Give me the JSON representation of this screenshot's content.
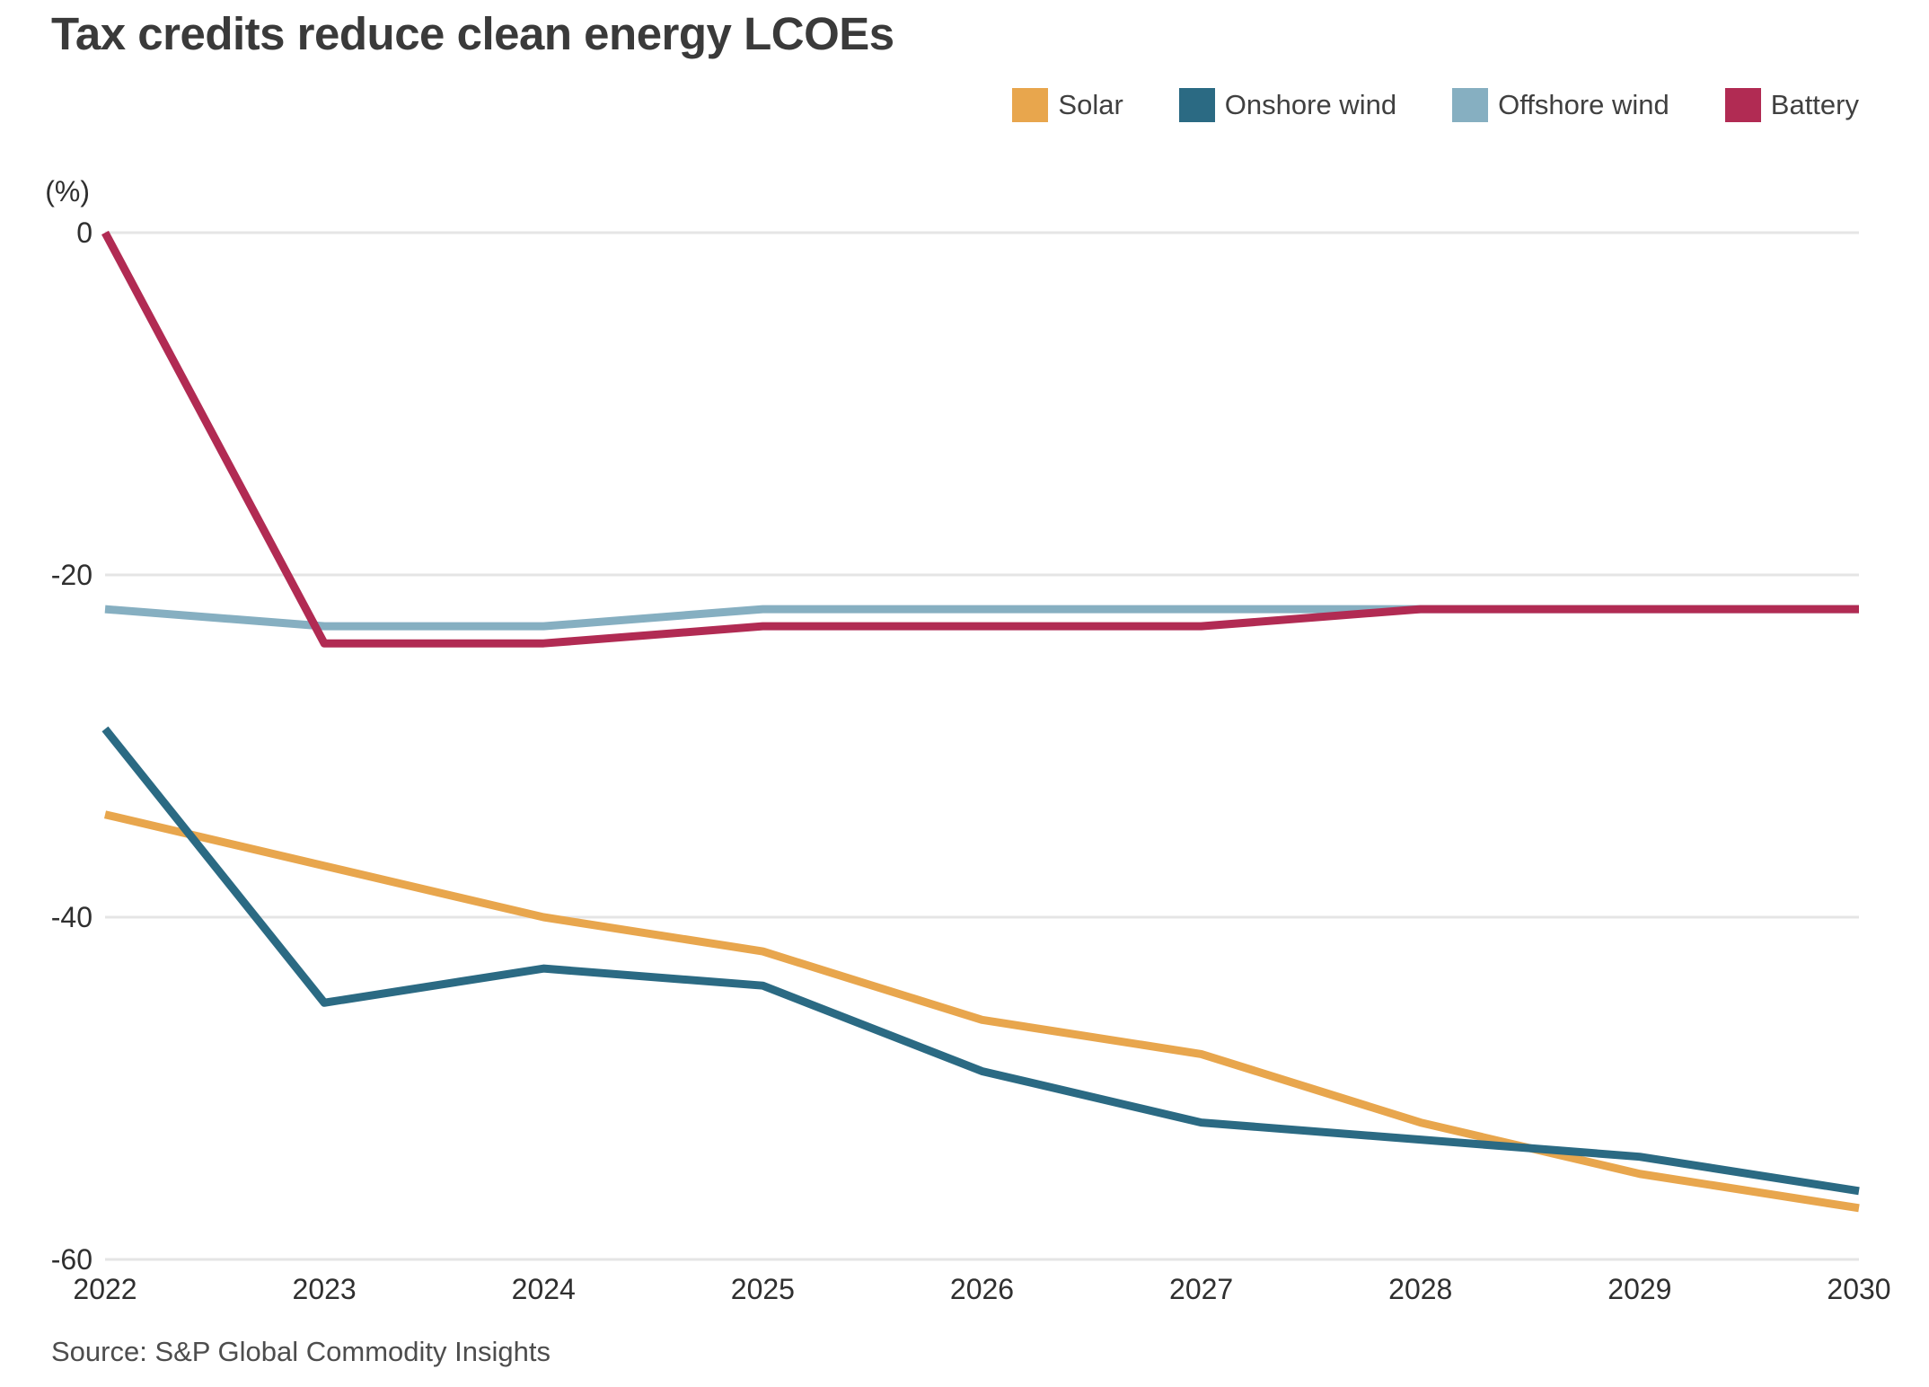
{
  "title": "Tax credits reduce clean energy LCOEs",
  "legend": {
    "items": [
      {
        "label": "Solar",
        "color": "#E8A64D"
      },
      {
        "label": "Onshore wind",
        "color": "#2B6A83"
      },
      {
        "label": "Offshore wind",
        "color": "#86AFC1"
      },
      {
        "label": "Battery",
        "color": "#B12B53"
      }
    ]
  },
  "source": "Source: S&P Global Commodity Insights",
  "chart_data": {
    "type": "line",
    "title": "Tax credits reduce clean energy LCOEs",
    "unit_label": "(%)",
    "x": [
      2022,
      2023,
      2024,
      2025,
      2026,
      2027,
      2028,
      2029,
      2030
    ],
    "xlabel": "",
    "ylabel": "(%)",
    "ylim": [
      -60,
      0
    ],
    "yticks": [
      0,
      -20,
      -40,
      -60
    ],
    "grid": true,
    "legend_position": "top-right",
    "gridline_color": "#E5E5E5",
    "tick_label_color": "#2f2f2f",
    "series": [
      {
        "name": "Solar",
        "color": "#E8A64D",
        "values": [
          -34,
          -37,
          -40,
          -42,
          -46,
          -48,
          -52,
          -55,
          -57
        ]
      },
      {
        "name": "Onshore wind",
        "color": "#2B6A83",
        "values": [
          -29,
          -45,
          -43,
          -44,
          -49,
          -52,
          -53,
          -54,
          -56
        ]
      },
      {
        "name": "Offshore wind",
        "color": "#86AFC1",
        "values": [
          -22,
          -23,
          -23,
          -22,
          -22,
          -22,
          -22,
          -22,
          -22
        ]
      },
      {
        "name": "Battery",
        "color": "#B12B53",
        "values": [
          0,
          -24,
          -24,
          -23,
          -23,
          -23,
          -22,
          -22,
          -22
        ]
      }
    ]
  }
}
